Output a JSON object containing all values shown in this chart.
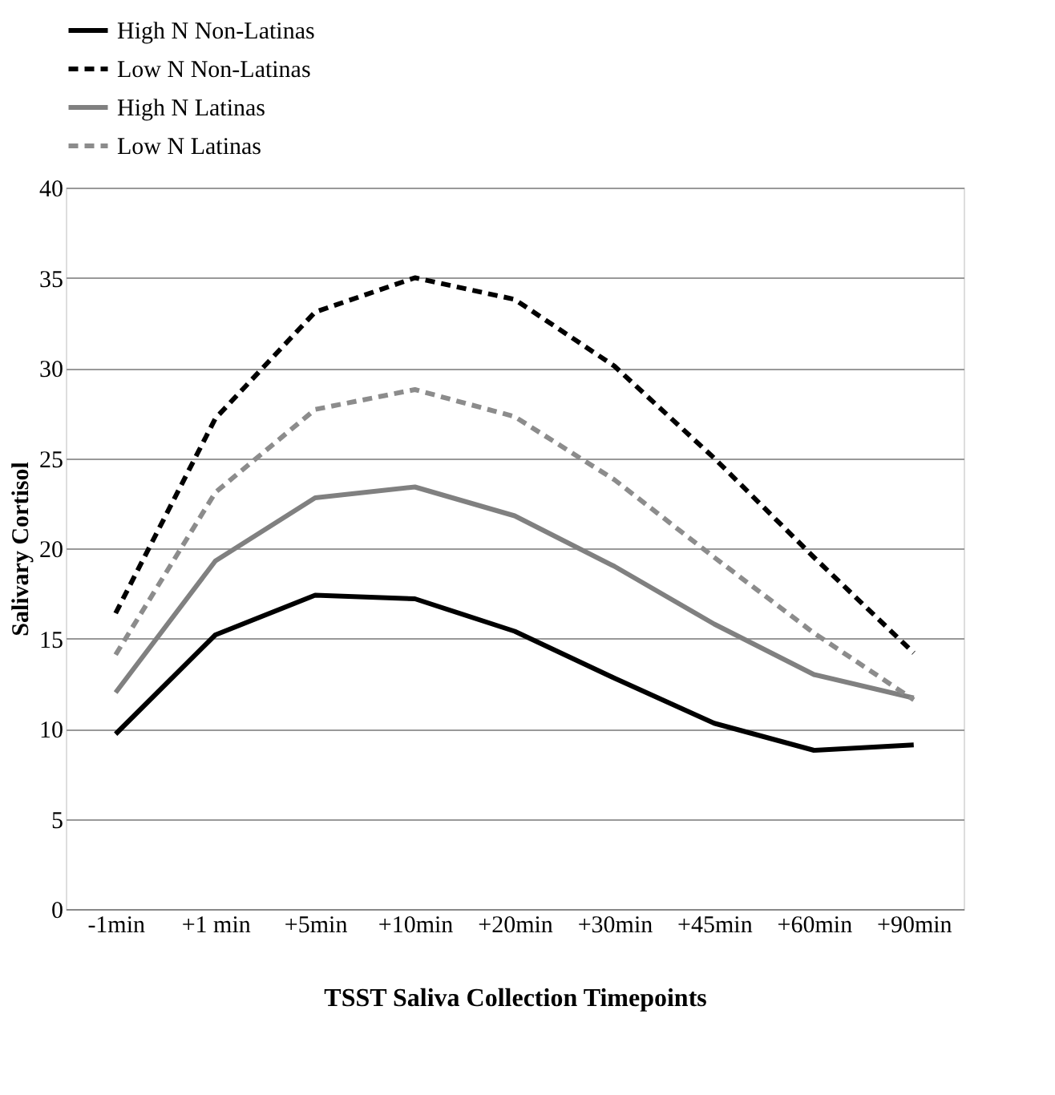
{
  "chart_data": {
    "type": "line",
    "xlabel": "TSST Saliva Collection Timepoints",
    "ylabel": "Salivary Cortisol",
    "categories": [
      "-1min",
      "+1 min",
      "+5min",
      "+10min",
      "+20min",
      "+30min",
      "+45min",
      "+60min",
      "+90min"
    ],
    "ylim": [
      0,
      40
    ],
    "yticks": [
      0,
      5,
      10,
      15,
      20,
      25,
      30,
      35,
      40
    ],
    "grid": "y",
    "legend": "top",
    "series": [
      {
        "name": "High N Non-Latinas",
        "color": "#000000",
        "line_style": "solid",
        "values": [
          9.7,
          15.2,
          17.4,
          17.2,
          15.4,
          12.8,
          10.3,
          8.8,
          9.1
        ]
      },
      {
        "name": "Low N Non-Latinas",
        "color": "#000000",
        "line_style": "dashed",
        "values": [
          16.4,
          27.2,
          33.1,
          35.0,
          33.8,
          30.1,
          25.0,
          19.5,
          14.2
        ]
      },
      {
        "name": "High N Latinas",
        "color": "#808080",
        "line_style": "solid",
        "values": [
          12.0,
          19.3,
          22.8,
          23.4,
          21.8,
          19.0,
          15.8,
          13.0,
          11.7
        ]
      },
      {
        "name": "Low N Latinas",
        "color": "#8c8c8c",
        "line_style": "dashed",
        "values": [
          14.1,
          23.1,
          27.7,
          28.8,
          27.3,
          23.8,
          19.5,
          15.3,
          11.6
        ]
      }
    ]
  }
}
